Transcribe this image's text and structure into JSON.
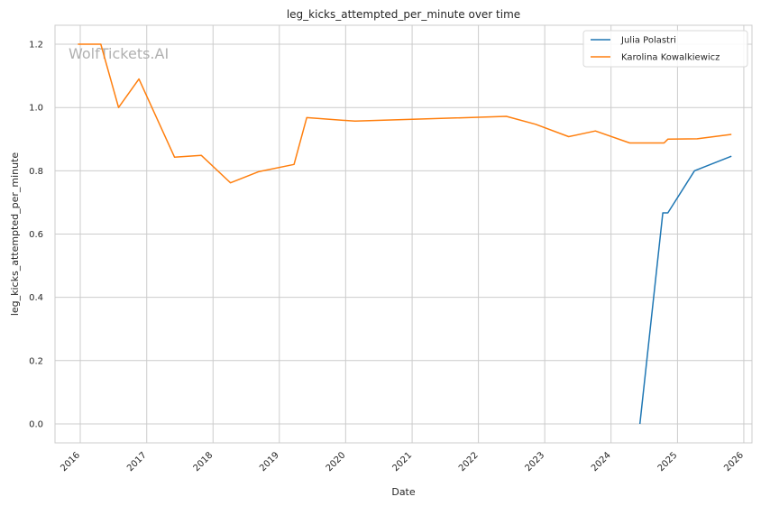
{
  "chart_data": {
    "type": "line",
    "title": "leg_kicks_attempted_per_minute over time",
    "xlabel": "Date",
    "ylabel": "leg_kicks_attempted_per_minute",
    "xlim": [
      "2015-08-15",
      "2026-02-15"
    ],
    "ylim": [
      -0.06,
      1.26
    ],
    "x_ticks": [
      "2016",
      "2017",
      "2018",
      "2019",
      "2020",
      "2021",
      "2022",
      "2023",
      "2024",
      "2025",
      "2026"
    ],
    "y_ticks": [
      "0.0",
      "0.2",
      "0.4",
      "0.6",
      "0.8",
      "1.0",
      "1.2"
    ],
    "grid": true,
    "legend_position": "top-right",
    "watermark": "WolfTickets.AI",
    "series": [
      {
        "name": "Julia Polastri",
        "color": "#1f77b4",
        "points": [
          [
            "2024-06-08",
            0.0
          ],
          [
            "2024-10-12",
            0.667
          ],
          [
            "2024-11-09",
            0.667
          ],
          [
            "2025-04-05",
            0.8
          ],
          [
            "2025-10-25",
            0.846
          ]
        ]
      },
      {
        "name": "Karolina Kowalkiewicz",
        "color": "#ff7f0e",
        "points": [
          [
            "2015-12-19",
            1.2
          ],
          [
            "2016-04-23",
            1.2
          ],
          [
            "2016-07-30",
            1.0
          ],
          [
            "2016-11-19",
            1.09
          ],
          [
            "2017-06-03",
            0.843
          ],
          [
            "2017-10-28",
            0.849
          ],
          [
            "2018-04-07",
            0.762
          ],
          [
            "2018-09-08",
            0.797
          ],
          [
            "2019-03-23",
            0.82
          ],
          [
            "2019-06-01",
            0.968
          ],
          [
            "2020-02-22",
            0.957
          ],
          [
            "2022-06-04",
            0.972
          ],
          [
            "2022-11-12",
            0.947
          ],
          [
            "2023-05-13",
            0.908
          ],
          [
            "2023-10-07",
            0.926
          ],
          [
            "2024-04-13",
            0.888
          ],
          [
            "2024-10-19",
            0.888
          ],
          [
            "2024-11-09",
            0.9
          ],
          [
            "2025-04-19",
            0.901
          ],
          [
            "2025-10-25",
            0.915
          ]
        ]
      }
    ]
  }
}
